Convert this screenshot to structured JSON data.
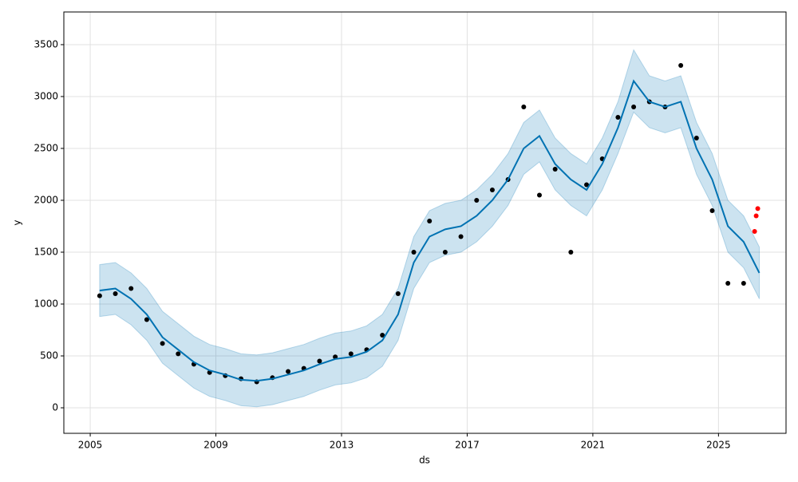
{
  "chart_data": {
    "type": "line",
    "xlabel": "ds",
    "ylabel": "y",
    "x": [
      2005.3,
      2005.8,
      2006.3,
      2006.8,
      2007.3,
      2007.8,
      2008.3,
      2008.8,
      2009.3,
      2009.8,
      2010.3,
      2010.8,
      2011.3,
      2011.8,
      2012.3,
      2012.8,
      2013.3,
      2013.8,
      2014.3,
      2014.8,
      2015.3,
      2015.8,
      2016.3,
      2016.8,
      2017.3,
      2017.8,
      2018.3,
      2018.8,
      2019.3,
      2019.8,
      2020.3,
      2020.8,
      2021.3,
      2021.8,
      2022.3,
      2022.8,
      2023.3,
      2023.8,
      2024.3,
      2024.8,
      2025.3,
      2025.8,
      2026.3
    ],
    "forecast": {
      "color": "#0072b2",
      "values": [
        1130,
        1150,
        1050,
        900,
        680,
        560,
        440,
        360,
        320,
        270,
        260,
        280,
        320,
        360,
        420,
        470,
        490,
        540,
        650,
        900,
        1400,
        1650,
        1720,
        1750,
        1850,
        2000,
        2200,
        2500,
        2620,
        2350,
        2200,
        2100,
        2350,
        2700,
        3150,
        2950,
        2900,
        2950,
        2500,
        2200,
        1750,
        1600,
        1300
      ]
    },
    "band": {
      "color": "#0072b2",
      "upper": [
        1380,
        1400,
        1300,
        1150,
        930,
        810,
        690,
        610,
        570,
        520,
        510,
        530,
        570,
        610,
        670,
        720,
        740,
        790,
        900,
        1150,
        1650,
        1900,
        1970,
        2000,
        2100,
        2250,
        2450,
        2750,
        2870,
        2600,
        2450,
        2350,
        2600,
        2950,
        3450,
        3200,
        3150,
        3200,
        2750,
        2450,
        2000,
        1850,
        1550
      ],
      "lower": [
        880,
        900,
        800,
        650,
        430,
        310,
        190,
        110,
        70,
        20,
        10,
        30,
        70,
        110,
        170,
        220,
        240,
        290,
        400,
        650,
        1150,
        1400,
        1470,
        1500,
        1600,
        1750,
        1950,
        2250,
        2370,
        2100,
        1950,
        1850,
        2100,
        2450,
        2850,
        2700,
        2650,
        2700,
        2250,
        1950,
        1500,
        1350,
        1050
      ]
    },
    "actual": {
      "color": "#000000",
      "values": [
        1080,
        1100,
        1150,
        850,
        620,
        520,
        420,
        340,
        310,
        280,
        250,
        290,
        350,
        380,
        450,
        490,
        520,
        560,
        700,
        1100,
        1500,
        1800,
        1500,
        1650,
        2000,
        2100,
        2200,
        2900,
        2050,
        2300,
        1500,
        2150,
        2400,
        2800,
        2900,
        2950,
        2900,
        3300,
        2600,
        1900,
        1200,
        1200,
        null
      ]
    },
    "recent": {
      "color": "#ff0000",
      "x": [
        2026.15,
        2026.2,
        2026.25
      ],
      "values": [
        1700,
        1850,
        1920
      ]
    },
    "xlim": [
      2004.16,
      2027.15
    ],
    "xticks": [
      2005,
      2009,
      2013,
      2017,
      2021,
      2025
    ],
    "ylim": [
      -246,
      3815
    ],
    "yticks": [
      0,
      500,
      1000,
      1500,
      2000,
      2500,
      3000,
      3500
    ],
    "grid": true
  }
}
